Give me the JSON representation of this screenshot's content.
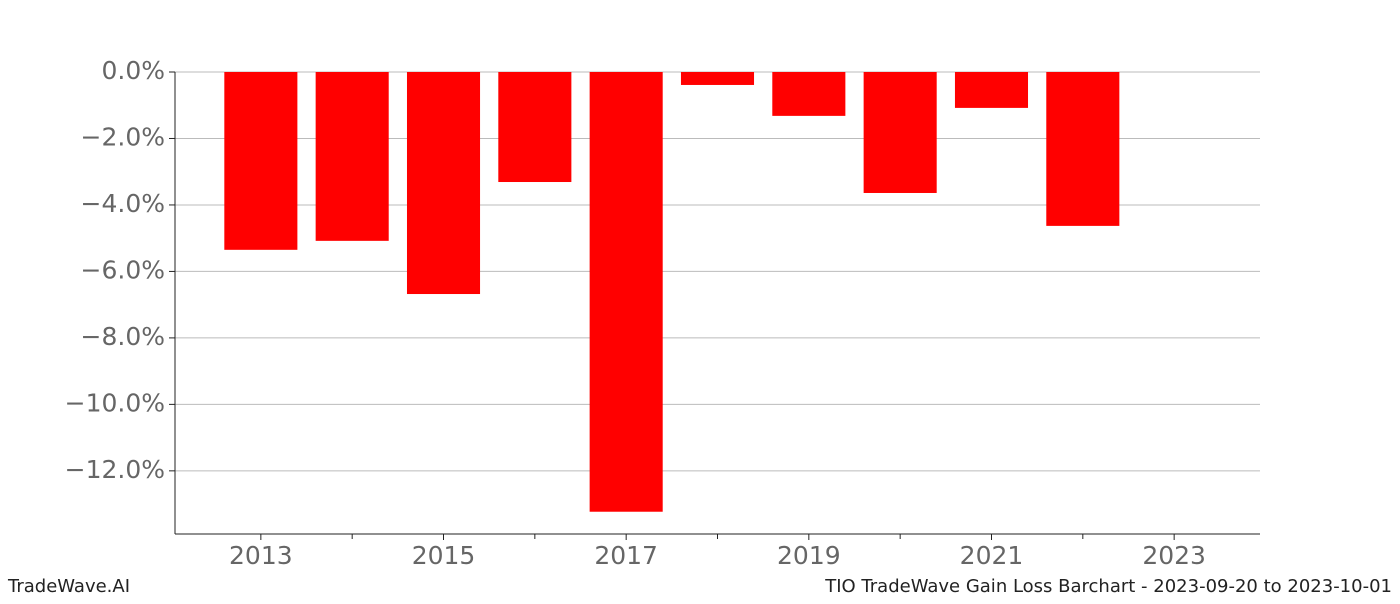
{
  "chart_data": {
    "type": "bar",
    "x": [
      2013,
      2014,
      2015,
      2016,
      2017,
      2018,
      2019,
      2020,
      2021,
      2022
    ],
    "values": [
      -5.35,
      -5.08,
      -6.68,
      -3.31,
      -13.23,
      -0.39,
      -1.32,
      -3.64,
      -1.08,
      -4.63
    ],
    "color": "#ff0000",
    "bar_width": 0.8,
    "xlim": [
      2012.06,
      2023.94
    ],
    "xticks": [
      2013,
      2015,
      2017,
      2019,
      2021,
      2023
    ],
    "xminorticks": [
      2014,
      2016,
      2018,
      2020,
      2022
    ],
    "ylim": [
      -13.9,
      0
    ],
    "yticks": [
      {
        "value": 0,
        "label": "0.0%"
      },
      {
        "value": -2,
        "label": "−2.0%"
      },
      {
        "value": -4,
        "label": "−4.0%"
      },
      {
        "value": -6,
        "label": "−6.0%"
      },
      {
        "value": -8,
        "label": "−8.0%"
      },
      {
        "value": -10,
        "label": "−10.0%"
      },
      {
        "value": -12,
        "label": "−12.0%"
      }
    ],
    "grid": true,
    "watermark": "TradeWave.AI",
    "footer": "TIO TradeWave Gain Loss Barchart - 2023-09-20 to 2023-10-01"
  }
}
